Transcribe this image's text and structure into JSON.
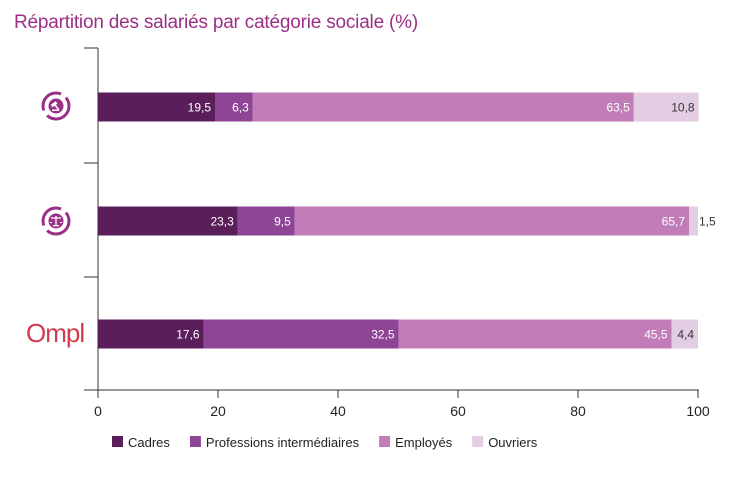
{
  "chart_data": {
    "type": "bar",
    "orientation": "horizontal",
    "stacked": true,
    "title": "Répartition des salariés par catégorie sociale (%)",
    "categories": [
      "gavel-logo",
      "scales-logo",
      "Ompl"
    ],
    "series": [
      {
        "name": "Cadres",
        "color": "#5a1e5b",
        "values": [
          19.5,
          23.3,
          17.6
        ],
        "labels": [
          "19,5",
          "23,3",
          "17,6"
        ]
      },
      {
        "name": "Professions intermédiaires",
        "color": "#8e4596",
        "values": [
          6.3,
          9.5,
          32.5
        ],
        "labels": [
          "6,3",
          "9,5",
          "32,5"
        ]
      },
      {
        "name": "Employés",
        "color": "#c27db8",
        "values": [
          63.5,
          65.7,
          45.5
        ],
        "labels": [
          "63,5",
          "65,7",
          "45,5"
        ]
      },
      {
        "name": "Ouvriers",
        "color": "#e3cde3",
        "values": [
          10.8,
          1.5,
          4.4
        ],
        "labels": [
          "10,8",
          "1,5",
          "4,4"
        ]
      }
    ],
    "xlim": [
      0,
      100
    ],
    "xticks": [
      0,
      20,
      40,
      60,
      80,
      100
    ],
    "grid": false,
    "legend_position": "bottom-left"
  },
  "logos": {
    "ompl_text": "Ompl",
    "logo_color": "#9b2f86",
    "ompl_color": "#d23a50"
  }
}
